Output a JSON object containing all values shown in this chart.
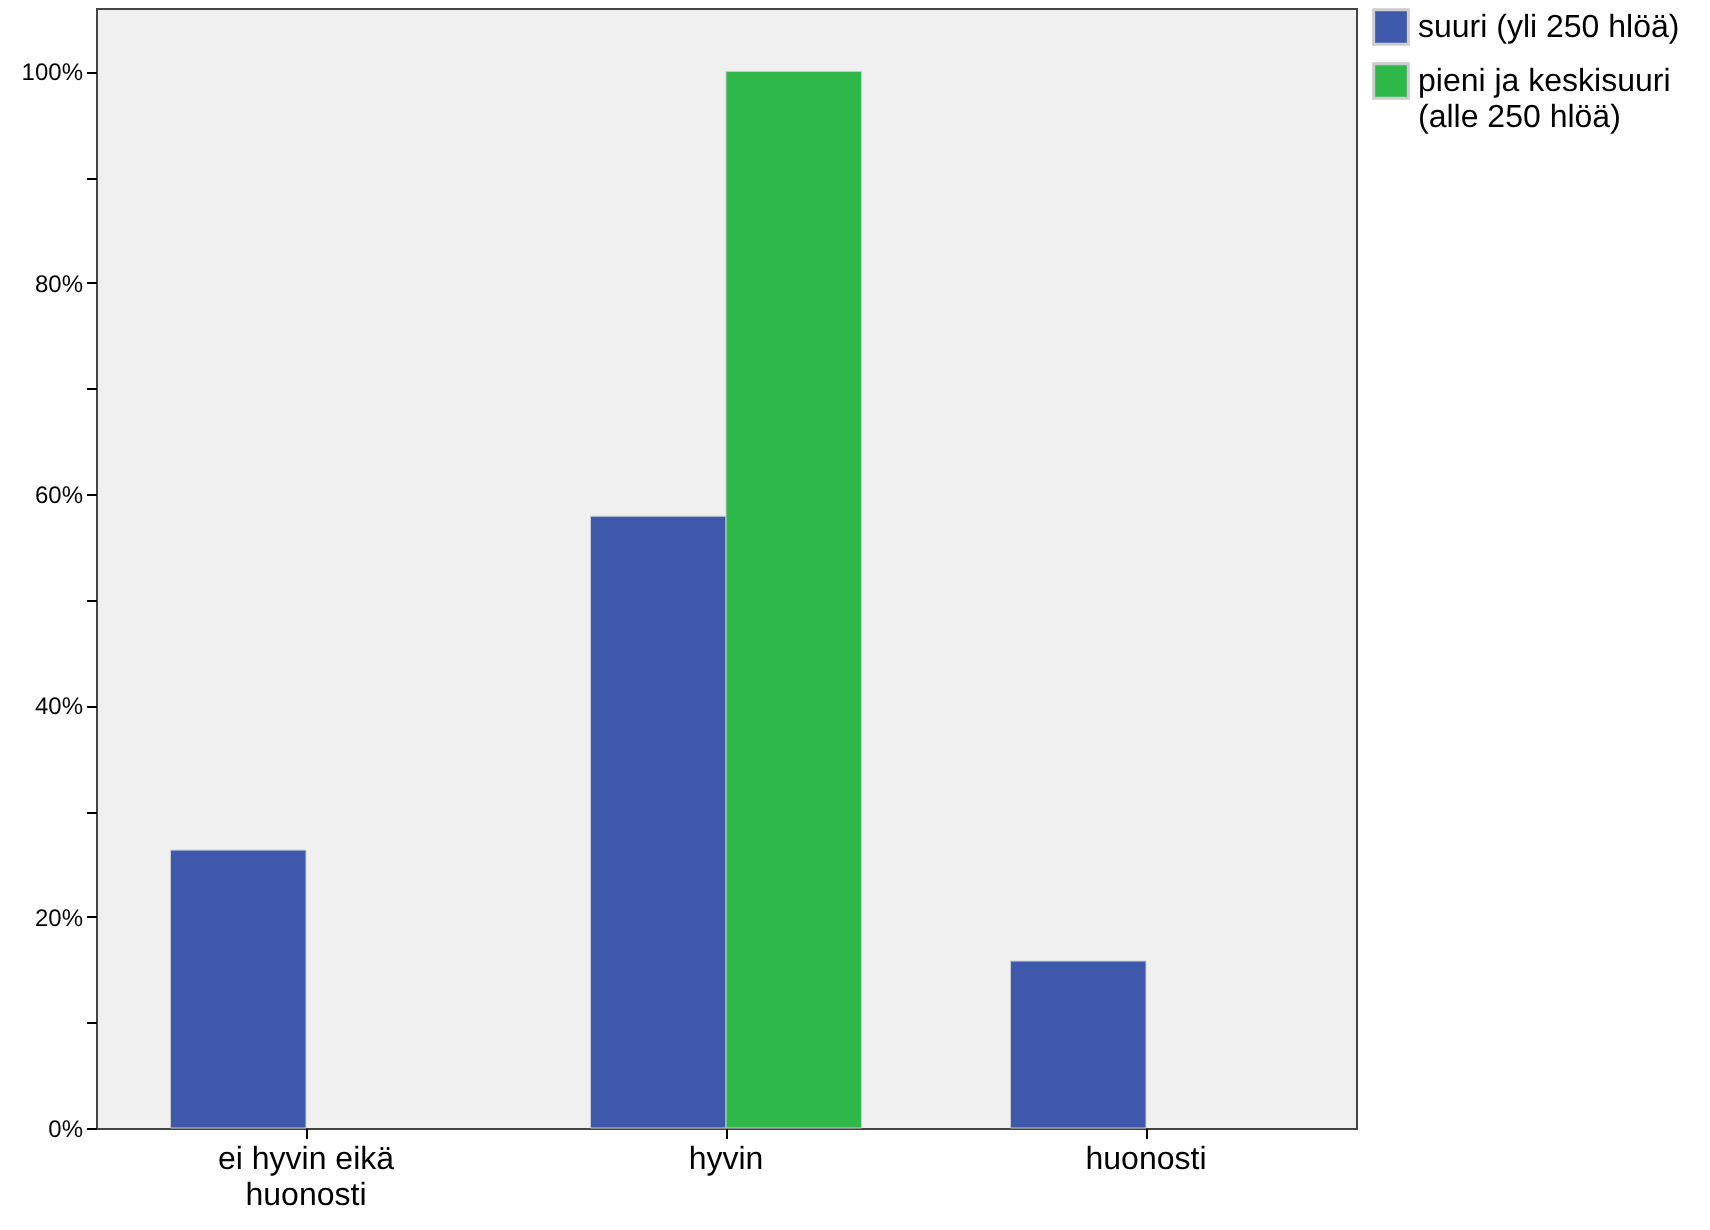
{
  "chart_data": {
    "type": "bar",
    "categories": [
      "ei hyvin eikä huonosti",
      "hyvin",
      "huonosti"
    ],
    "series": [
      {
        "name": "suuri (yli 250 hlöä)",
        "color": "#3e58ac",
        "values": [
          26.3,
          57.9,
          15.8
        ]
      },
      {
        "name": "pieni ja keskisuuri (alle 250 hlöä)",
        "color": "#2eb84a",
        "values": [
          null,
          100,
          null
        ]
      }
    ],
    "ylim": [
      0,
      106
    ],
    "yticks": [
      {
        "value": 0,
        "label": "0%"
      },
      {
        "value": 10,
        "label": null
      },
      {
        "value": 20,
        "label": "20%"
      },
      {
        "value": 30,
        "label": null
      },
      {
        "value": 40,
        "label": "40%"
      },
      {
        "value": 50,
        "label": null
      },
      {
        "value": 60,
        "label": "60%"
      },
      {
        "value": 70,
        "label": null
      },
      {
        "value": 80,
        "label": "80%"
      },
      {
        "value": 90,
        "label": null
      },
      {
        "value": 100,
        "label": "100%"
      }
    ],
    "grid": false,
    "legend": "top right"
  }
}
